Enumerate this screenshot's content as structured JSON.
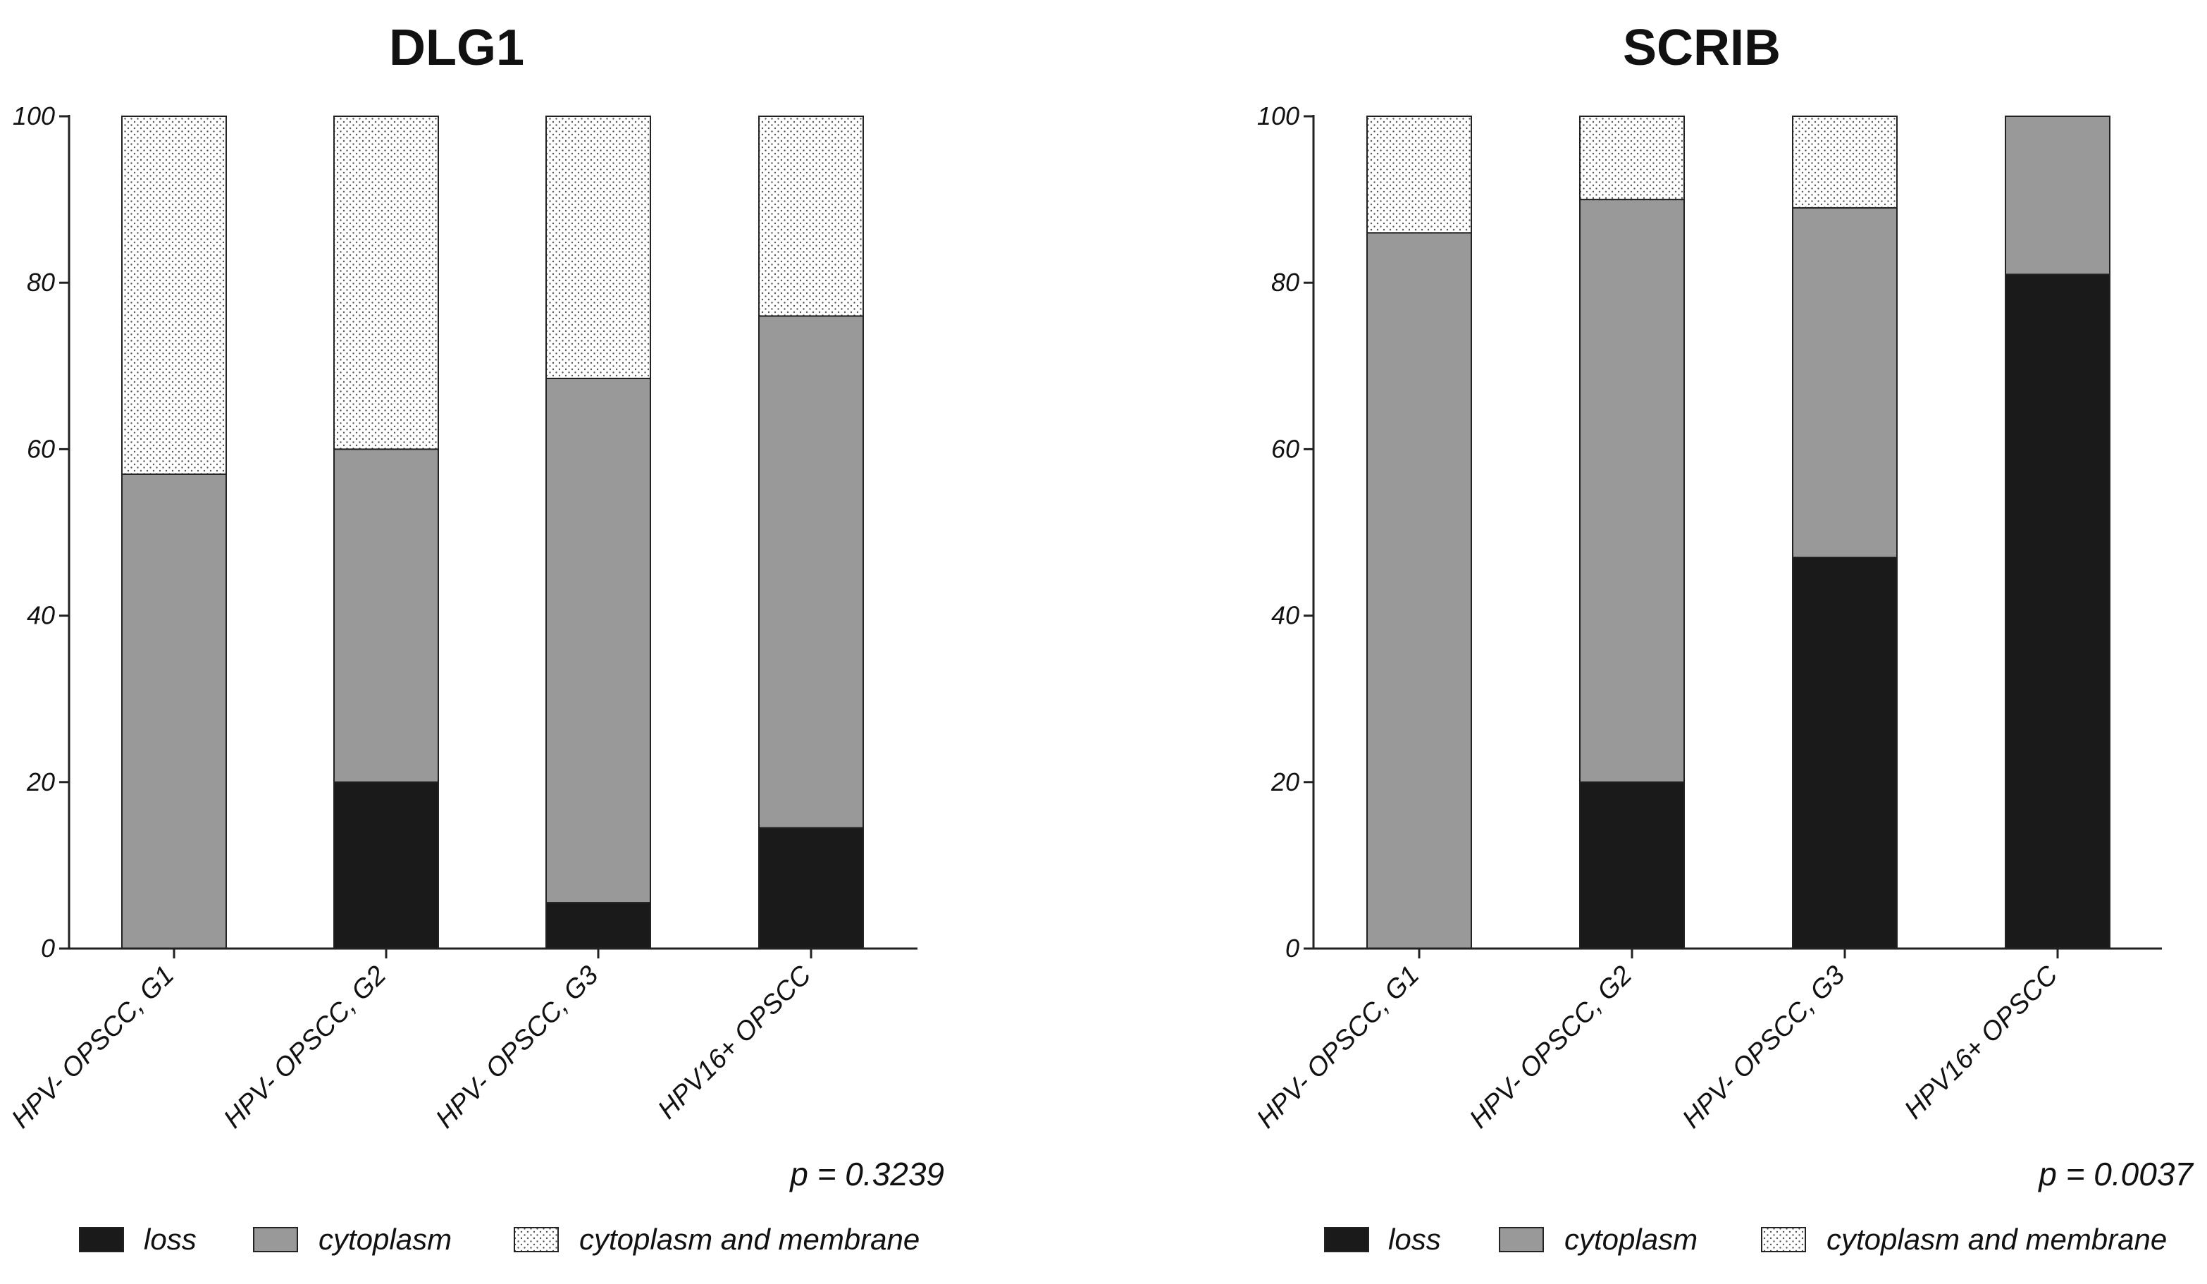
{
  "colors": {
    "loss": "#1a1a1a",
    "cytoplasm": "#999999",
    "cytoplasm_and_membrane": "#ffffff",
    "axis": "#222222"
  },
  "chart_data": [
    {
      "type": "bar",
      "stacked": true,
      "title": "DLG1",
      "categories": [
        "HPV- OPSCC, G1",
        "HPV- OPSCC, G2",
        "HPV- OPSCC, G3",
        "HPV16+ OPSCC"
      ],
      "series": [
        {
          "name": "loss",
          "values": [
            0,
            20,
            5.5,
            14.5
          ]
        },
        {
          "name": "cytoplasm",
          "values": [
            57,
            40,
            63,
            61.5
          ]
        },
        {
          "name": "cytoplasm and membrane",
          "values": [
            43,
            40,
            31.5,
            24
          ]
        }
      ],
      "ylim": [
        0,
        100
      ],
      "yticks": [
        0,
        20,
        40,
        60,
        80,
        100
      ],
      "xlabel": "",
      "ylabel": "",
      "p_value": "p = 0.3239",
      "legend_position": "bottom"
    },
    {
      "type": "bar",
      "stacked": true,
      "title": "SCRIB",
      "categories": [
        "HPV- OPSCC, G1",
        "HPV- OPSCC, G2",
        "HPV- OPSCC, G3",
        "HPV16+ OPSCC"
      ],
      "series": [
        {
          "name": "loss",
          "values": [
            0,
            20,
            47,
            81
          ]
        },
        {
          "name": "cytoplasm",
          "values": [
            86,
            70,
            42,
            19
          ]
        },
        {
          "name": "cytoplasm and membrane",
          "values": [
            14,
            10,
            11,
            0
          ]
        }
      ],
      "ylim": [
        0,
        100
      ],
      "yticks": [
        0,
        20,
        40,
        60,
        80,
        100
      ],
      "xlabel": "",
      "ylabel": "",
      "p_value": "p = 0.0037",
      "legend_position": "bottom"
    }
  ]
}
